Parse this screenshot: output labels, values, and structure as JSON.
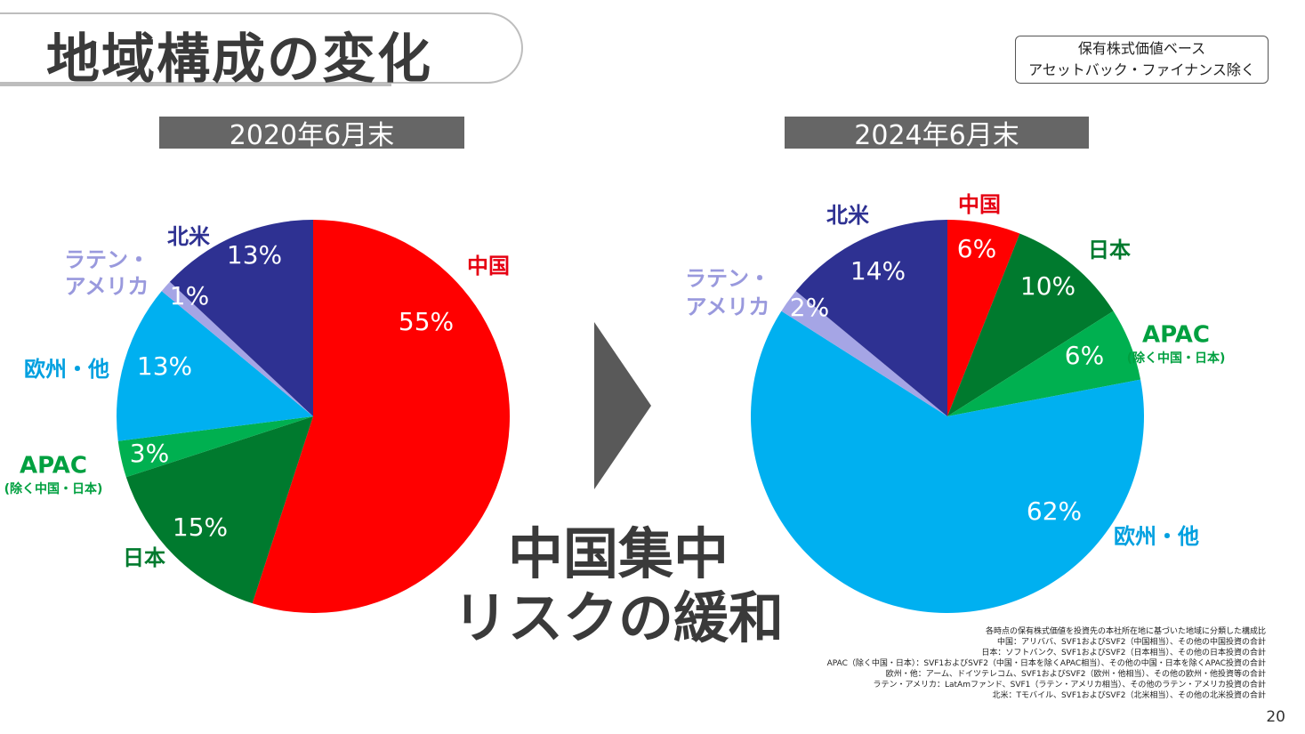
{
  "header": {
    "title": "地域構成の変化",
    "basis_line1": "保有株式価値ベース",
    "basis_line2": "アセットバック・ファイナンス除く"
  },
  "periods": [
    "2020年6月末",
    "2024年6月末"
  ],
  "mitigation": {
    "line1": "中国集中",
    "line2": "リスクの緩和"
  },
  "chart_data": [
    {
      "type": "pie",
      "title": "2020年6月末",
      "slices": [
        {
          "label": "中国",
          "value": 55,
          "value_label": "55%",
          "color": "#ff0000",
          "label_color": "#e60012"
        },
        {
          "label": "日本",
          "value": 15,
          "value_label": "15%",
          "color": "#007a2e",
          "label_color": "#007a2e"
        },
        {
          "label": "APAC",
          "sublabel": "(除く中国・日本)",
          "value": 3,
          "value_label": "3%",
          "color": "#00b050",
          "label_color": "#00a040"
        },
        {
          "label": "欧州・他",
          "value": 13,
          "value_label": "13%",
          "color": "#00b0f0",
          "label_color": "#00a0e0"
        },
        {
          "label": "ラテン・アメリカ",
          "value": 1,
          "value_label": "1%",
          "color": "#a5a5e5",
          "label_color": "#9999dd"
        },
        {
          "label": "北米",
          "value": 13,
          "value_label": "13%",
          "color": "#2e3192",
          "label_color": "#2e3192"
        }
      ]
    },
    {
      "type": "pie",
      "title": "2024年6月末",
      "slices": [
        {
          "label": "中国",
          "value": 6,
          "value_label": "6%",
          "color": "#ff0000",
          "label_color": "#e60012"
        },
        {
          "label": "日本",
          "value": 10,
          "value_label": "10%",
          "color": "#007a2e",
          "label_color": "#007a2e"
        },
        {
          "label": "APAC",
          "sublabel": "(除く中国・日本)",
          "value": 6,
          "value_label": "6%",
          "color": "#00b050",
          "label_color": "#00a040"
        },
        {
          "label": "欧州・他",
          "value": 62,
          "value_label": "62%",
          "color": "#00b0f0",
          "label_color": "#00a0e0"
        },
        {
          "label": "ラテン・アメリカ",
          "value": 2,
          "value_label": "2%",
          "color": "#a5a5e5",
          "label_color": "#9999dd"
        },
        {
          "label": "北米",
          "value": 14,
          "value_label": "14%",
          "color": "#2e3192",
          "label_color": "#2e3192"
        }
      ]
    }
  ],
  "notes": [
    "各時点の保有株式価値を投資先の本社所在地に基づいた地域に分類した構成比",
    "中国：アリババ、SVF1およびSVF2（中国相当）、その他の中国投資の合計",
    "日本：ソフトバンク、SVF1およびSVF2（日本相当）、その他の日本投資の合計",
    "APAC（除く中国・日本）：SVF1およびSVF2（中国・日本を除くAPAC相当）、その他の中国・日本を除くAPAC投資の合計",
    "欧州・他：アーム、ドイツテレコム、SVF1およびSVF2（欧州・他相当）、その他の欧州・他投資等の合計",
    "ラテン・アメリカ：LatAmファンド、SVF1（ラテン・アメリカ相当）、その他のラテン・アメリカ投資の合計",
    "北米：Tモバイル、SVF1およびSVF2（北米相当）、その他の北米投資の合計"
  ],
  "page_number": "20"
}
